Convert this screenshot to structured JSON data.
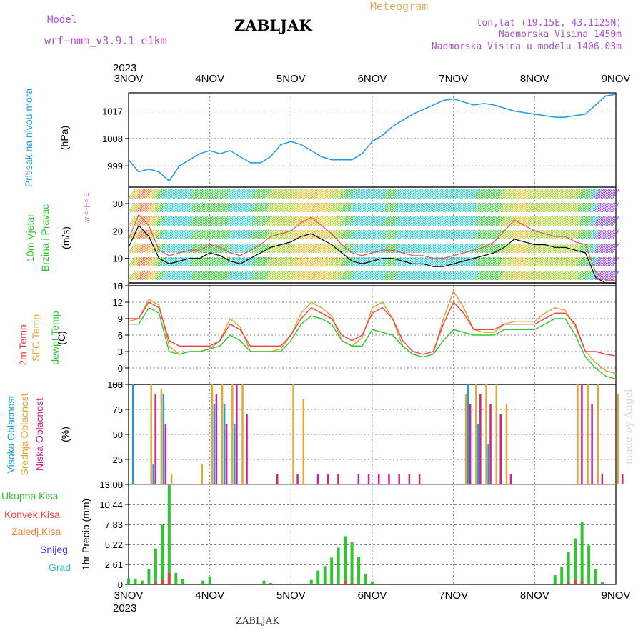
{
  "header": {
    "model_label": "Model",
    "model_name": "wrf−nmm_v3.9.1  e1km",
    "station": "ZABLJAK",
    "meteogram_label": "Meteogram",
    "coords": "lon,lat (19.15E, 43.1125N)",
    "altitude": "Nadmorska Visina 1450m",
    "model_altitude": "Nadmorska Visina u modelu 1406.03m",
    "footer_station": "ZABLJAK",
    "credit": "made by Angel"
  },
  "time_axis": {
    "top_year": "2023",
    "bottom_year": "2023",
    "labels": [
      "3NOV",
      "4NOV",
      "5NOV",
      "6NOV",
      "7NOV",
      "8NOV",
      "9NOV"
    ]
  },
  "panel_labels": {
    "pressure": {
      "name": "Pritisak na nivou mora",
      "unit": "(hPa)"
    },
    "wind": {
      "name1": "10m Vjetar",
      "name2": "Brzina i Pravac",
      "unit": "(m/s)",
      "compass": "w <−|−> E"
    },
    "temp": {
      "t2m": "2m Temp",
      "sfc": "SFC Temp",
      "dew": "dewpt Temp",
      "unit": "(C)"
    },
    "cloud": {
      "high": "Visoka Oblacnost",
      "mid": "Srednja Oblacnost",
      "low": "Niska Oblacnost",
      "unit": "(%)"
    },
    "precip": {
      "legend": [
        "Ukupna Kisa",
        "Konvek.Kisa",
        "Zaledj.Kisa",
        "Snijeg",
        "Grad"
      ],
      "unit": "1hr Precip (mm)"
    }
  },
  "colors": {
    "pressure": "#1e9be0",
    "t2m": "#f04040",
    "sfc": "#e0a030",
    "dew": "#2ec82e",
    "high_cloud": "#1e9be0",
    "mid_cloud": "#e0a830",
    "low_cloud": "#d0208a",
    "total_rain": "#2ec82e",
    "conv_rain": "#f04040",
    "frz_rain": "#f08030",
    "snow": "#4040e0",
    "hail": "#30c0c0",
    "wind_label": "#2ec82e",
    "compass": "#b050d0",
    "grid": "#808080"
  },
  "chart_data": [
    {
      "type": "line",
      "panel": "pressure",
      "x": [
        0,
        3,
        6,
        9,
        12,
        15,
        18,
        21,
        24,
        27,
        30,
        33,
        36,
        39,
        42,
        45,
        48,
        51,
        54,
        57,
        60,
        63,
        66,
        69,
        72,
        75,
        78,
        81,
        84,
        87,
        90,
        93,
        96,
        99,
        102,
        105,
        108,
        111,
        114,
        117,
        120,
        123,
        126,
        129,
        132,
        135,
        138,
        141,
        144
      ],
      "series": [
        {
          "name": "Pritisak na nivou mora",
          "values": [
            1001,
            997,
            998,
            997,
            994,
            999,
            1001,
            1003,
            1004,
            1003,
            1004,
            1002,
            1000,
            1000,
            1002,
            1006,
            1007,
            1006,
            1004,
            1002,
            1001,
            1001,
            1001,
            1003,
            1007,
            1009,
            1012,
            1014,
            1016,
            1017.5,
            1019,
            1020.5,
            1021,
            1020,
            1019,
            1019.5,
            1019,
            1018,
            1017,
            1016.5,
            1016,
            1015.5,
            1015,
            1015,
            1015.5,
            1016,
            1019,
            1022,
            1022.5
          ]
        }
      ],
      "ylabel": "(hPa)",
      "ytick_labels": [
        "999",
        "1008",
        "1017"
      ],
      "ylim": [
        992,
        1023
      ]
    },
    {
      "type": "line",
      "panel": "wind",
      "x": [
        0,
        3,
        6,
        9,
        12,
        15,
        18,
        21,
        24,
        27,
        30,
        33,
        36,
        39,
        42,
        45,
        48,
        51,
        54,
        57,
        60,
        63,
        66,
        69,
        72,
        75,
        78,
        81,
        84,
        87,
        90,
        93,
        96,
        99,
        102,
        105,
        108,
        111,
        114,
        117,
        120,
        123,
        126,
        129,
        132,
        135,
        138,
        141,
        144
      ],
      "series": [
        {
          "name": "speed",
          "values": [
            14,
            22,
            18,
            10,
            8,
            9,
            10,
            10,
            12,
            11,
            9,
            8,
            10,
            12,
            14,
            15,
            16,
            18,
            19,
            17,
            15,
            12,
            9,
            8,
            9,
            10,
            10,
            9,
            8,
            8,
            7,
            7,
            8,
            9,
            10,
            11,
            12,
            14,
            17,
            16,
            15,
            15,
            14,
            14,
            13,
            12,
            3,
            1,
            1
          ]
        },
        {
          "name": "gust",
          "values": [
            17,
            26,
            22,
            13,
            11,
            12,
            13,
            13,
            15,
            14,
            12,
            11,
            13,
            15,
            18,
            19,
            20,
            23,
            25,
            22,
            19,
            15,
            12,
            11,
            12,
            13,
            13,
            12,
            11,
            11,
            10,
            10,
            11,
            12,
            13,
            14,
            16,
            20,
            24,
            22,
            20,
            19,
            18,
            18,
            16,
            15,
            5,
            2,
            2
          ]
        }
      ],
      "ylabel": "(m/s)",
      "ytick_labels": [
        "0",
        "10",
        "20",
        "30"
      ],
      "ylim": [
        0,
        36
      ]
    },
    {
      "type": "line",
      "panel": "temp",
      "x": [
        0,
        3,
        6,
        9,
        12,
        15,
        18,
        21,
        24,
        27,
        30,
        33,
        36,
        39,
        42,
        45,
        48,
        51,
        54,
        57,
        60,
        63,
        66,
        69,
        72,
        75,
        78,
        81,
        84,
        87,
        90,
        93,
        96,
        99,
        102,
        105,
        108,
        111,
        114,
        117,
        120,
        123,
        126,
        129,
        132,
        135,
        138,
        141,
        144
      ],
      "series": [
        {
          "name": "2m Temp",
          "values": [
            9,
            9,
            12,
            11,
            5,
            4,
            4,
            4,
            4,
            5,
            8,
            7,
            4,
            4,
            4,
            4,
            6,
            9,
            11,
            10,
            9,
            6,
            5,
            6,
            10,
            11,
            9,
            5,
            3,
            2.5,
            3,
            8,
            12,
            10,
            7,
            7,
            7,
            8,
            8,
            8,
            8,
            9,
            10,
            10,
            8,
            3,
            3,
            2.5,
            2.2
          ]
        },
        {
          "name": "SFC Temp",
          "values": [
            8.5,
            9,
            12.5,
            11.5,
            4,
            2.5,
            3,
            3,
            3.5,
            5,
            9,
            7.5,
            3,
            3,
            3,
            3.5,
            6,
            10,
            12,
            11,
            9.5,
            5,
            4,
            5.5,
            11,
            12,
            9,
            4,
            2.5,
            2,
            2.5,
            9,
            14,
            11,
            7,
            6.5,
            6.5,
            8,
            8.5,
            8.5,
            8.5,
            10,
            11,
            10.5,
            7.5,
            3,
            1,
            -0.5,
            -1
          ]
        },
        {
          "name": "dewpt Temp",
          "values": [
            8,
            8,
            11,
            10,
            3,
            2.5,
            3,
            3,
            3.5,
            4,
            6,
            5,
            3,
            3,
            3,
            3,
            5,
            8,
            9.5,
            9,
            8,
            5,
            4,
            4,
            7,
            6.5,
            6,
            4,
            2.5,
            2,
            2.5,
            5,
            7,
            6.5,
            6,
            6,
            6,
            7,
            7,
            7,
            7,
            8,
            9,
            9,
            6,
            2,
            0,
            -1.5,
            -2
          ]
        }
      ],
      "ylabel": "(C)",
      "ytick_labels": [
        "−3",
        "0",
        "3",
        "6",
        "9",
        "12",
        "15"
      ],
      "ylim": [
        -3,
        15
      ]
    },
    {
      "type": "bar",
      "panel": "cloud",
      "x": [
        0,
        3,
        6,
        9,
        12,
        15,
        18,
        21,
        24,
        27,
        30,
        33,
        36,
        39,
        42,
        45,
        48,
        51,
        54,
        57,
        60,
        63,
        66,
        69,
        72,
        75,
        78,
        81,
        84,
        87,
        90,
        93,
        96,
        99,
        102,
        105,
        108,
        111,
        114,
        117,
        120,
        123,
        126,
        129,
        132,
        135,
        138,
        141,
        144
      ],
      "series": [
        {
          "name": "Visoka Oblacnost",
          "values": [
            100,
            0,
            20,
            90,
            0,
            0,
            0,
            0,
            80,
            80,
            60,
            0,
            0,
            0,
            0,
            0,
            0,
            0,
            0,
            0,
            0,
            0,
            0,
            0,
            0,
            0,
            0,
            0,
            0,
            0,
            0,
            0,
            0,
            100,
            60,
            40,
            0,
            0,
            0,
            0,
            0,
            0,
            0,
            0,
            0,
            0,
            0,
            0,
            0
          ]
        },
        {
          "name": "Srednja Oblacnost",
          "values": [
            0,
            0,
            100,
            95,
            10,
            0,
            0,
            20,
            100,
            100,
            100,
            100,
            0,
            0,
            0,
            0,
            100,
            85,
            0,
            0,
            0,
            0,
            0,
            0,
            0,
            0,
            0,
            0,
            0,
            0,
            0,
            0,
            0,
            90,
            100,
            100,
            100,
            80,
            0,
            0,
            0,
            0,
            0,
            0,
            100,
            100,
            100,
            0,
            90
          ]
        },
        {
          "name": "Niska Oblacnost",
          "values": [
            0,
            0,
            90,
            60,
            0,
            0,
            0,
            0,
            90,
            60,
            100,
            70,
            0,
            0,
            10,
            0,
            10,
            0,
            10,
            10,
            10,
            0,
            10,
            10,
            10,
            10,
            10,
            10,
            10,
            0,
            0,
            0,
            0,
            80,
            90,
            80,
            70,
            10,
            0,
            0,
            0,
            0,
            0,
            0,
            100,
            80,
            10,
            0,
            10
          ]
        }
      ],
      "ylabel": "(%)",
      "ytick_labels": [
        "0",
        "25",
        "50",
        "75",
        "100"
      ],
      "ylim": [
        0,
        100
      ]
    },
    {
      "type": "bar",
      "panel": "precip",
      "x": [
        0,
        2,
        4,
        6,
        8,
        10,
        12,
        14,
        16,
        18,
        20,
        22,
        24,
        26,
        28,
        30,
        32,
        34,
        36,
        38,
        40,
        42,
        44,
        46,
        48,
        50,
        52,
        54,
        56,
        58,
        60,
        62,
        64,
        66,
        68,
        70,
        72,
        74,
        76,
        78,
        80,
        82,
        84,
        86,
        88,
        90,
        92,
        94,
        96,
        98,
        100,
        102,
        104,
        106,
        108,
        110,
        112,
        114,
        116,
        118,
        120,
        122,
        124,
        126,
        128,
        130,
        132,
        134,
        136,
        138,
        140,
        142,
        144
      ],
      "series": [
        {
          "name": "Ukupna Kisa",
          "values": [
            0.8,
            0.7,
            0.5,
            2,
            4.7,
            7.8,
            13,
            1.5,
            0.7,
            0,
            0,
            0.5,
            1,
            0,
            0,
            0,
            0,
            0,
            0,
            0,
            0.5,
            0.2,
            0,
            0,
            0,
            0,
            0.1,
            0.6,
            1.8,
            2.4,
            3.5,
            4.8,
            6.3,
            5.5,
            3.6,
            1.4,
            0.4,
            0,
            0,
            0,
            0,
            0,
            0,
            0,
            0,
            0,
            0,
            0,
            0,
            0,
            0,
            0,
            0,
            0,
            0,
            0,
            0,
            0,
            0,
            0,
            0,
            0,
            0,
            1.2,
            2.3,
            4.2,
            6,
            8.1,
            5.1,
            2,
            0.3,
            0,
            0
          ]
        },
        {
          "name": "Konvek.Kisa",
          "values": [
            0,
            0,
            0,
            0,
            0.3,
            0.6,
            1.5,
            0,
            0,
            0,
            0,
            0,
            0,
            0,
            0,
            0,
            0,
            0,
            0,
            0,
            0,
            0,
            0,
            0,
            0,
            0,
            0,
            0,
            0,
            0,
            0,
            0,
            0.5,
            0.2,
            0,
            0,
            0,
            0,
            0,
            0,
            0,
            0,
            0,
            0,
            0,
            0,
            0,
            0,
            0,
            0,
            0,
            0,
            0,
            0,
            0,
            0,
            0,
            0,
            0,
            0,
            0,
            0,
            0,
            0,
            0,
            0.3,
            0.6,
            0.4,
            0,
            0,
            0,
            0,
            0
          ]
        }
      ],
      "ylabel": "1hr Precip (mm)",
      "ytick_labels": [
        "0",
        "2.61",
        "5.22",
        "7.83",
        "10.44",
        "13.05"
      ],
      "ylim": [
        0,
        13.05
      ]
    }
  ]
}
